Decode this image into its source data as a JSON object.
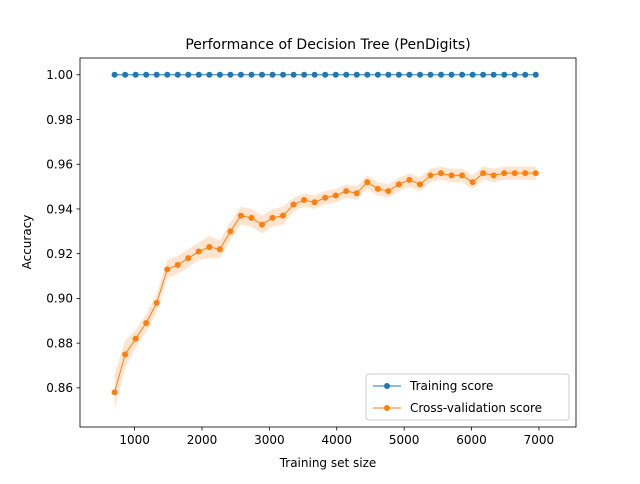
{
  "chart_data": {
    "type": "line",
    "title": "Performance of Decision Tree (PenDigits)",
    "xlabel": "Training set size",
    "ylabel": "Accuracy",
    "xlim": [
      190,
      7550
    ],
    "ylim": [
      0.8425,
      1.0075
    ],
    "xticks": [
      1000,
      2000,
      3000,
      4000,
      5000,
      6000,
      7000
    ],
    "yticks": [
      0.86,
      0.88,
      0.9,
      0.92,
      0.94,
      0.96,
      0.98,
      1.0
    ],
    "ytick_labels": [
      "0.86",
      "0.88",
      "0.90",
      "0.92",
      "0.94",
      "0.96",
      "0.98",
      "1.00"
    ],
    "grid": false,
    "legend_position": "lower right",
    "x": [
      703,
      860,
      1016,
      1172,
      1328,
      1485,
      1641,
      1797,
      1953,
      2110,
      2266,
      2422,
      2578,
      2735,
      2891,
      3047,
      3203,
      3360,
      3516,
      3672,
      3828,
      3985,
      4141,
      4297,
      4453,
      4610,
      4766,
      4922,
      5078,
      5235,
      5391,
      5547,
      5703,
      5860,
      6016,
      6172,
      6328,
      6485,
      6641,
      6797,
      6953
    ],
    "series": [
      {
        "name": "Training score",
        "color": "#1f77b4",
        "values": [
          1.0,
          1.0,
          1.0,
          1.0,
          1.0,
          1.0,
          1.0,
          1.0,
          1.0,
          1.0,
          1.0,
          1.0,
          1.0,
          1.0,
          1.0,
          1.0,
          1.0,
          1.0,
          1.0,
          1.0,
          1.0,
          1.0,
          1.0,
          1.0,
          1.0,
          1.0,
          1.0,
          1.0,
          1.0,
          1.0,
          1.0,
          1.0,
          1.0,
          1.0,
          1.0,
          1.0,
          1.0,
          1.0,
          1.0,
          1.0,
          1.0
        ],
        "band": 0.0
      },
      {
        "name": "Cross-validation score",
        "color": "#ff7f0e",
        "values": [
          0.858,
          0.875,
          0.882,
          0.889,
          0.898,
          0.913,
          0.915,
          0.918,
          0.921,
          0.923,
          0.922,
          0.93,
          0.937,
          0.936,
          0.933,
          0.936,
          0.937,
          0.942,
          0.944,
          0.943,
          0.945,
          0.946,
          0.948,
          0.947,
          0.952,
          0.949,
          0.948,
          0.951,
          0.953,
          0.951,
          0.955,
          0.956,
          0.955,
          0.955,
          0.952,
          0.956,
          0.955,
          0.956,
          0.956,
          0.956,
          0.956
        ],
        "band": [
          0.008,
          0.006,
          0.004,
          0.004,
          0.004,
          0.004,
          0.004,
          0.004,
          0.004,
          0.005,
          0.004,
          0.004,
          0.004,
          0.004,
          0.004,
          0.004,
          0.004,
          0.003,
          0.003,
          0.003,
          0.003,
          0.003,
          0.003,
          0.003,
          0.003,
          0.003,
          0.003,
          0.003,
          0.003,
          0.003,
          0.003,
          0.003,
          0.003,
          0.003,
          0.003,
          0.003,
          0.003,
          0.003,
          0.003,
          0.003,
          0.003
        ]
      }
    ]
  }
}
